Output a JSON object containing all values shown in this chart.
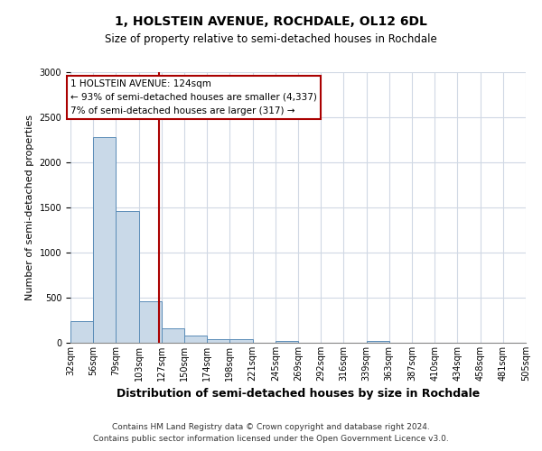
{
  "title": "1, HOLSTEIN AVENUE, ROCHDALE, OL12 6DL",
  "subtitle": "Size of property relative to semi-detached houses in Rochdale",
  "xlabel": "Distribution of semi-detached houses by size in Rochdale",
  "ylabel": "Number of semi-detached properties",
  "footer1": "Contains HM Land Registry data © Crown copyright and database right 2024.",
  "footer2": "Contains public sector information licensed under the Open Government Licence v3.0.",
  "bin_labels": [
    "32sqm",
    "56sqm",
    "79sqm",
    "103sqm",
    "127sqm",
    "150sqm",
    "174sqm",
    "198sqm",
    "221sqm",
    "245sqm",
    "269sqm",
    "292sqm",
    "316sqm",
    "339sqm",
    "363sqm",
    "387sqm",
    "410sqm",
    "434sqm",
    "458sqm",
    "481sqm",
    "505sqm"
  ],
  "bar_values": [
    245,
    2280,
    1460,
    460,
    160,
    85,
    45,
    40,
    0,
    25,
    0,
    0,
    0,
    20,
    0,
    0,
    0,
    0,
    0,
    0
  ],
  "bar_color": "#c9d9e8",
  "bar_edge_color": "#5b8db8",
  "ylim": [
    0,
    3000
  ],
  "yticks": [
    0,
    500,
    1000,
    1500,
    2000,
    2500,
    3000
  ],
  "bin_edges": [
    32,
    56,
    79,
    103,
    127,
    150,
    174,
    198,
    221,
    245,
    269,
    292,
    316,
    339,
    363,
    387,
    410,
    434,
    458,
    481,
    505
  ],
  "property_sqm": 124,
  "annotation_title": "1 HOLSTEIN AVENUE: 124sqm",
  "annotation_line1": "← 93% of semi-detached houses are smaller (4,337)",
  "annotation_line2": "7% of semi-detached houses are larger (317) →",
  "box_color": "white",
  "box_edge_color": "#aa0000",
  "vline_color": "#aa0000",
  "background_color": "white",
  "grid_color": "#d0d8e4",
  "title_fontsize": 10,
  "subtitle_fontsize": 8.5,
  "ylabel_fontsize": 8,
  "xlabel_fontsize": 9,
  "tick_fontsize": 7,
  "footer_fontsize": 6.5
}
